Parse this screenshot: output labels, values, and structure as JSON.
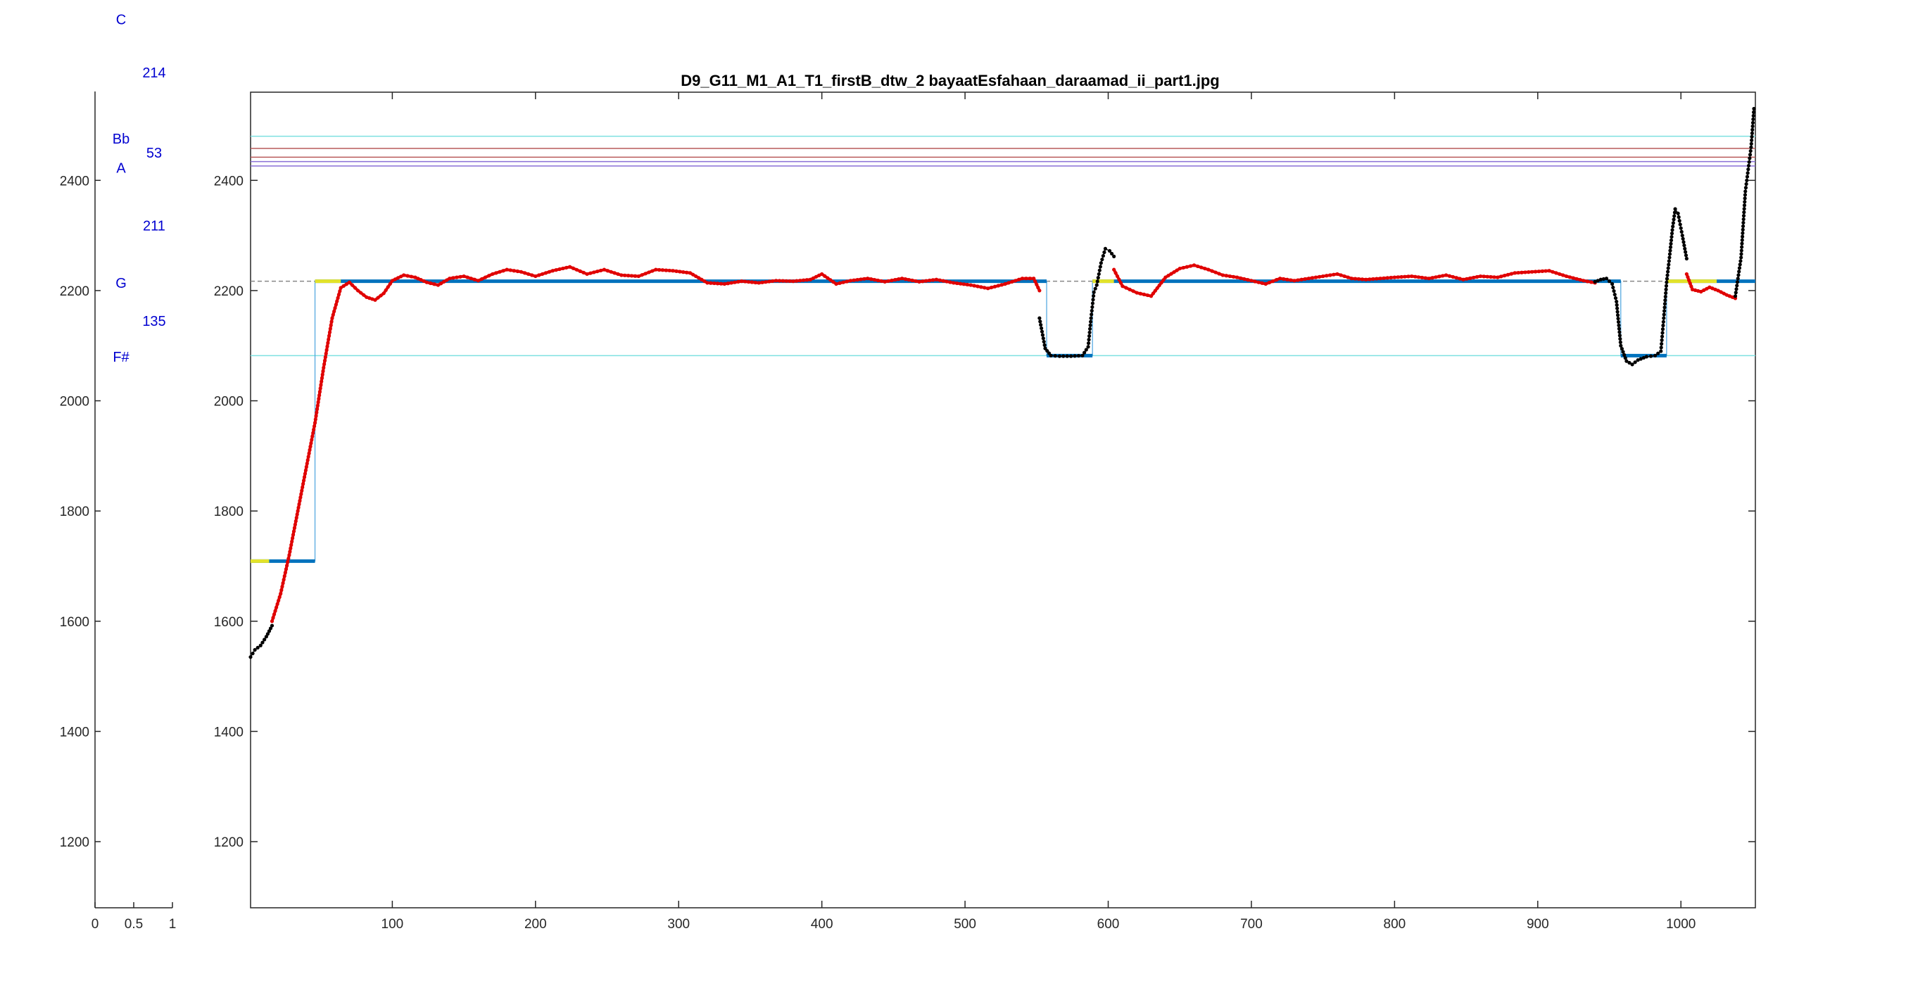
{
  "figure": {
    "title": "D9_G11_M1_A1_T1_firstB_dtw_2 bayaatEsfahaan_daraamad_ii_part1.jpg"
  },
  "side_panel": {
    "x_ticks": [
      "0",
      "0.5",
      "1"
    ],
    "y_ticks": [
      "1200",
      "1400",
      "1600",
      "1800",
      "2000",
      "2200",
      "2400"
    ],
    "note_labels": [
      {
        "text": "C",
        "y": 2692
      },
      {
        "text": "Bb",
        "y": 2476
      },
      {
        "text": "A",
        "y": 2423
      },
      {
        "text": "G",
        "y": 2214
      },
      {
        "text": "F#",
        "y": 2080
      }
    ],
    "interval_labels": [
      {
        "text": "214",
        "y": 2596
      },
      {
        "text": "53",
        "y": 2450
      },
      {
        "text": "211",
        "y": 2318
      },
      {
        "text": "135",
        "y": 2145
      }
    ]
  },
  "colors": {
    "pitch_red": "#e00000",
    "pitch_black": "#000000",
    "segment_blue": "#0072bd",
    "segment_yellow": "#e3e32a",
    "step_line": "#4aa3df",
    "ref_cyan": "#7ee0e0",
    "ref_red": "#b85a5a",
    "ref_purple": "#8a6fd6",
    "ref_dashed": "#888888",
    "axis": "#262626"
  },
  "chart_data": {
    "type": "line",
    "title": "D9_G11_M1_A1_T1_firstB_dtw_2 bayaatEsfahaan_daraamad_ii_part1.jpg",
    "xlabel": "",
    "ylabel": "",
    "xlim": [
      1,
      1052
    ],
    "ylim": [
      1080,
      2560
    ],
    "grid": false,
    "x_ticks": [
      100,
      200,
      300,
      400,
      500,
      600,
      700,
      800,
      900,
      1000
    ],
    "y_ticks": [
      1200,
      1400,
      1600,
      1800,
      2000,
      2200,
      2400
    ],
    "reference_lines": [
      {
        "y": 2480,
        "color": "cyan"
      },
      {
        "y": 2458,
        "color": "red"
      },
      {
        "y": 2442,
        "color": "red"
      },
      {
        "y": 2434,
        "color": "purple"
      },
      {
        "y": 2426,
        "color": "purple"
      },
      {
        "y": 2217,
        "color": "gray",
        "style": "dashed"
      },
      {
        "y": 2082,
        "color": "cyan"
      }
    ],
    "segments": [
      {
        "x_start": 1,
        "x_end": 46,
        "y": 1709
      },
      {
        "x_start": 46,
        "x_end": 557,
        "y": 2217
      },
      {
        "x_start": 557,
        "x_end": 589,
        "y": 2082
      },
      {
        "x_start": 589,
        "x_end": 958,
        "y": 2217
      },
      {
        "x_start": 958,
        "x_end": 990,
        "y": 2082
      },
      {
        "x_start": 990,
        "x_end": 1052,
        "y": 2217
      }
    ],
    "highlight_segments": [
      {
        "x_start": 1,
        "x_end": 14,
        "y": 1709
      },
      {
        "x_start": 46,
        "x_end": 64,
        "y": 2217
      },
      {
        "x_start": 589,
        "x_end": 604,
        "y": 2217
      },
      {
        "x_start": 990,
        "x_end": 1025,
        "y": 2217
      }
    ],
    "series": [
      {
        "color": "black",
        "x": [
          1,
          4,
          8,
          12,
          16
        ],
        "y": [
          1535,
          1548,
          1556,
          1572,
          1592
        ]
      },
      {
        "color": "red",
        "x": [
          16,
          22,
          28,
          34,
          40,
          46,
          52,
          58,
          64,
          70,
          76,
          82,
          88,
          94,
          100,
          108,
          116,
          124,
          132,
          140,
          150,
          160,
          170,
          180,
          190,
          200,
          212,
          224,
          236,
          248,
          260,
          272,
          284,
          296,
          308,
          320,
          332,
          344,
          356,
          368,
          380,
          392,
          400,
          410,
          420,
          432,
          444,
          456,
          468,
          480,
          492,
          504,
          516,
          528,
          540,
          548,
          552
        ],
        "y": [
          1600,
          1650,
          1720,
          1800,
          1880,
          1960,
          2060,
          2150,
          2205,
          2215,
          2200,
          2188,
          2183,
          2195,
          2218,
          2228,
          2224,
          2215,
          2210,
          2222,
          2226,
          2218,
          2230,
          2238,
          2234,
          2226,
          2236,
          2243,
          2230,
          2238,
          2228,
          2226,
          2238,
          2236,
          2232,
          2214,
          2212,
          2217,
          2214,
          2218,
          2217,
          2220,
          2230,
          2212,
          2218,
          2222,
          2216,
          2222,
          2216,
          2220,
          2214,
          2210,
          2204,
          2212,
          2222,
          2222,
          2200
        ]
      },
      {
        "color": "black",
        "x": [
          552,
          556,
          560,
          566,
          574,
          582,
          586,
          588,
          590,
          592,
          595,
          598,
          601,
          604
        ],
        "y": [
          2150,
          2095,
          2082,
          2081,
          2081,
          2082,
          2098,
          2150,
          2197,
          2210,
          2250,
          2276,
          2272,
          2262
        ]
      },
      {
        "color": "red",
        "x": [
          604,
          610,
          620,
          630,
          640,
          650,
          660,
          670,
          680,
          690,
          700,
          710,
          720,
          730,
          740,
          750,
          760,
          770,
          780,
          790,
          800,
          812,
          824,
          836,
          848,
          860,
          872,
          884,
          896,
          908,
          920,
          932,
          940
        ],
        "y": [
          2238,
          2208,
          2196,
          2190,
          2224,
          2240,
          2246,
          2238,
          2228,
          2224,
          2218,
          2212,
          2222,
          2218,
          2222,
          2226,
          2230,
          2222,
          2220,
          2222,
          2224,
          2226,
          2222,
          2228,
          2220,
          2226,
          2224,
          2232,
          2234,
          2236,
          2226,
          2218,
          2214
        ]
      },
      {
        "color": "black",
        "x": [
          940,
          944,
          948,
          952,
          955,
          958,
          962,
          966,
          970,
          976,
          982,
          986,
          988,
          990,
          992,
          994,
          996,
          998,
          1001,
          1004
        ],
        "y": [
          2216,
          2220,
          2222,
          2212,
          2180,
          2100,
          2072,
          2066,
          2074,
          2080,
          2082,
          2090,
          2150,
          2215,
          2260,
          2310,
          2348,
          2340,
          2300,
          2258
        ]
      },
      {
        "color": "red",
        "x": [
          1004,
          1008,
          1014,
          1020,
          1026,
          1032,
          1038
        ],
        "y": [
          2230,
          2202,
          2198,
          2206,
          2200,
          2192,
          2186
        ]
      },
      {
        "color": "black",
        "x": [
          1038,
          1042,
          1045,
          1047,
          1049,
          1051
        ],
        "y": [
          2190,
          2260,
          2380,
          2420,
          2460,
          2530
        ]
      }
    ]
  }
}
